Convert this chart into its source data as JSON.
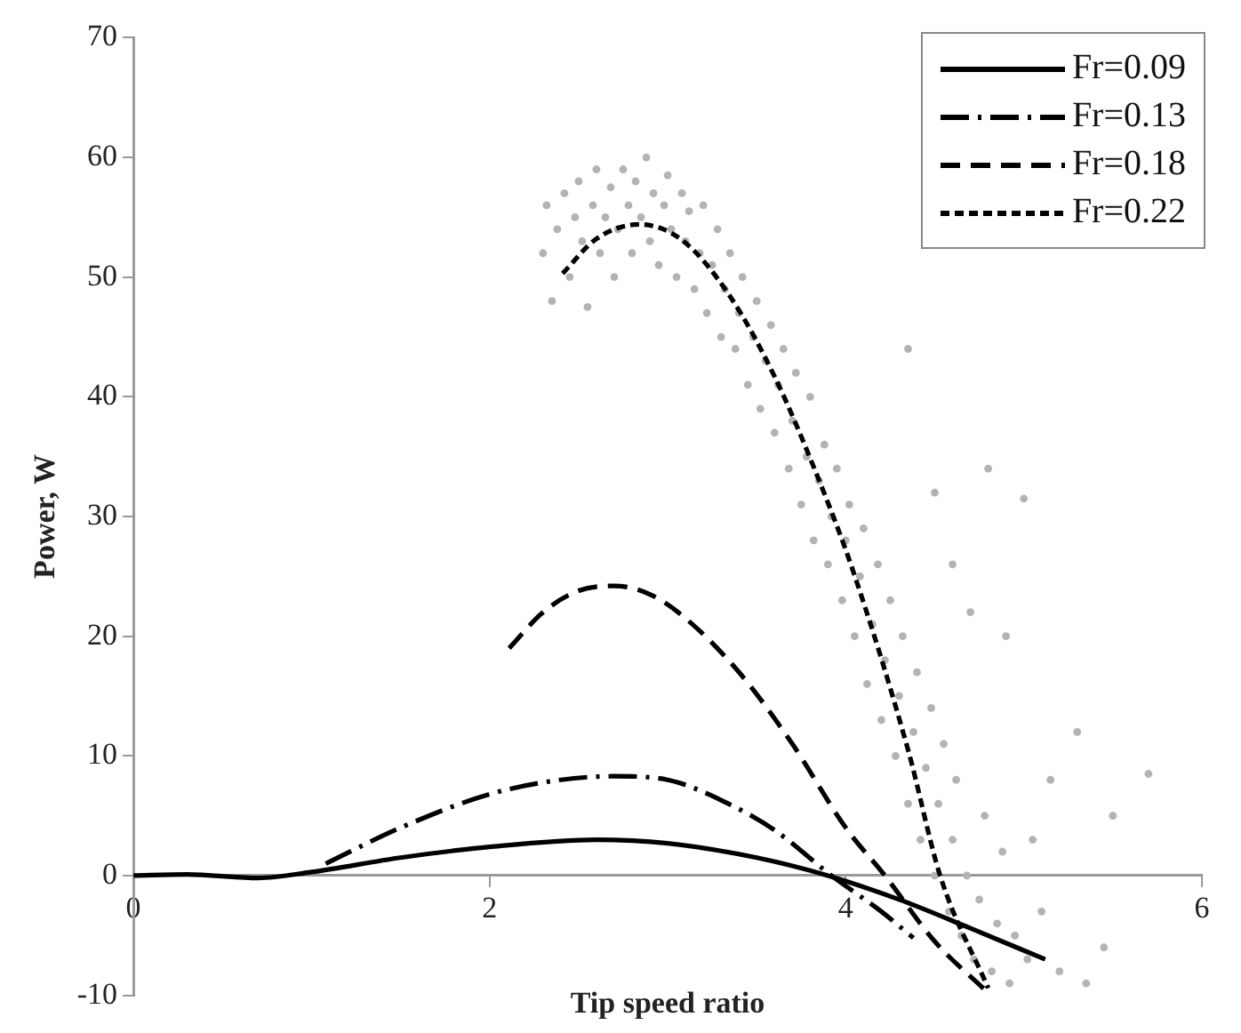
{
  "chart_data": {
    "type": "line",
    "xlabel": "Tip speed ratio",
    "ylabel": "Power, W",
    "xlim": [
      0,
      6
    ],
    "ylim": [
      -10,
      70
    ],
    "xticks": [
      0,
      2,
      4,
      6
    ],
    "yticks": [
      -10,
      0,
      10,
      20,
      30,
      40,
      50,
      60,
      70
    ],
    "grid": false,
    "legend": "top right",
    "series": [
      {
        "name": "Fr=0.09",
        "type": "line",
        "color": "#000000",
        "line_style": "solid",
        "marker": "none",
        "x": [
          0,
          0.3,
          0.7,
          1.0,
          1.5,
          2.0,
          2.6,
          3.0,
          3.5,
          3.9,
          4.3,
          4.7,
          5.12
        ],
        "values": [
          0,
          0.1,
          -0.2,
          0.3,
          1.5,
          2.4,
          3,
          2.7,
          1.5,
          0,
          -2,
          -4.4,
          -7
        ]
      },
      {
        "name": "Fr=0.13",
        "type": "line",
        "color": "#000000",
        "line_style": "dashdot",
        "marker": "none",
        "x": [
          1.08,
          1.5,
          2.0,
          2.4,
          2.7,
          3.0,
          3.3,
          3.6,
          3.92,
          4.2,
          4.38
        ],
        "values": [
          1,
          4,
          6.8,
          8,
          8.3,
          8,
          6.3,
          3.8,
          0,
          -3,
          -5.2
        ]
      },
      {
        "name": "Fr=0.18",
        "type": "line",
        "color": "#000000",
        "line_style": "dashed",
        "marker": "none",
        "x": [
          2.11,
          2.3,
          2.5,
          2.7,
          2.9,
          3.1,
          3.4,
          3.7,
          4.0,
          4.22,
          4.5,
          4.8
        ],
        "values": [
          19,
          22,
          23.8,
          24.2,
          23.5,
          21.5,
          17,
          11,
          4,
          0,
          -5.5,
          -9.8
        ]
      },
      {
        "name": "Fr=0.22",
        "type": "line",
        "color": "#000000",
        "line_style": "dotted",
        "marker": "none",
        "x": [
          2.41,
          2.6,
          2.84,
          3.08,
          3.35,
          3.6,
          3.84,
          4.04,
          4.35,
          4.53,
          4.8
        ],
        "values": [
          50.3,
          53.2,
          54.4,
          53.1,
          48.4,
          41.7,
          33.4,
          25.5,
          10.5,
          0,
          -9.4
        ]
      },
      {
        "type": "scatter",
        "color": "#b3b3b3",
        "marker": "circle",
        "x": [
          2.3,
          2.32,
          2.35,
          2.38,
          2.42,
          2.45,
          2.48,
          2.5,
          2.52,
          2.55,
          2.58,
          2.6,
          2.62,
          2.65,
          2.68,
          2.7,
          2.72,
          2.75,
          2.78,
          2.8,
          2.82,
          2.85,
          2.88,
          2.9,
          2.92,
          2.95,
          2.98,
          3.0,
          3.02,
          3.05,
          3.08,
          3.1,
          3.12,
          3.15,
          3.18,
          3.2,
          3.22,
          3.25,
          3.28,
          3.3,
          3.32,
          3.35,
          3.38,
          3.4,
          3.42,
          3.45,
          3.48,
          3.5,
          3.52,
          3.55,
          3.58,
          3.6,
          3.62,
          3.65,
          3.68,
          3.7,
          3.72,
          3.75,
          3.78,
          3.8,
          3.82,
          3.85,
          3.88,
          3.9,
          3.92,
          3.95,
          3.98,
          4.0,
          4.02,
          4.05,
          4.08,
          4.1,
          4.12,
          4.15,
          4.18,
          4.2,
          4.22,
          4.25,
          4.28,
          4.3,
          4.32,
          4.35,
          4.35,
          4.38,
          4.4,
          4.42,
          4.45,
          4.48,
          4.5,
          4.52,
          4.55,
          4.58,
          4.6,
          4.62,
          4.65,
          4.68,
          4.7,
          4.72,
          4.75,
          4.78,
          4.8,
          4.82,
          4.85,
          4.88,
          4.9,
          4.92,
          4.95,
          5.0,
          5.02,
          5.05,
          5.1,
          5.15,
          5.2,
          5.3,
          5.35,
          5.45,
          5.5,
          5.7,
          4.6,
          4.5
        ],
        "values": [
          52,
          56,
          48,
          54,
          57,
          50,
          55,
          58,
          53,
          47.5,
          56,
          59,
          52,
          55,
          57.5,
          50,
          54,
          59,
          56,
          52,
          58,
          55,
          60,
          53,
          57,
          51,
          56,
          58.5,
          54,
          50,
          57,
          53,
          55.5,
          49,
          52,
          56,
          47,
          51,
          54,
          45,
          49,
          52,
          44,
          47,
          50,
          41,
          45,
          48,
          39,
          43,
          46,
          37,
          41,
          44,
          34,
          38,
          42,
          31,
          35,
          40,
          28,
          33,
          36,
          26,
          30,
          34,
          23,
          28,
          31,
          20,
          25,
          29,
          16,
          21,
          26,
          13,
          18,
          23,
          10,
          15,
          20,
          44,
          6,
          12,
          17,
          3,
          9,
          14,
          0,
          6,
          11,
          -3,
          3,
          8,
          -5,
          0,
          22,
          -7,
          -2,
          5,
          34,
          -8,
          -4,
          2,
          20,
          -9,
          -5,
          31.5,
          -7,
          3,
          -3,
          8,
          -8,
          12,
          -9,
          -6,
          5,
          8.5,
          26,
          32
        ]
      }
    ]
  }
}
